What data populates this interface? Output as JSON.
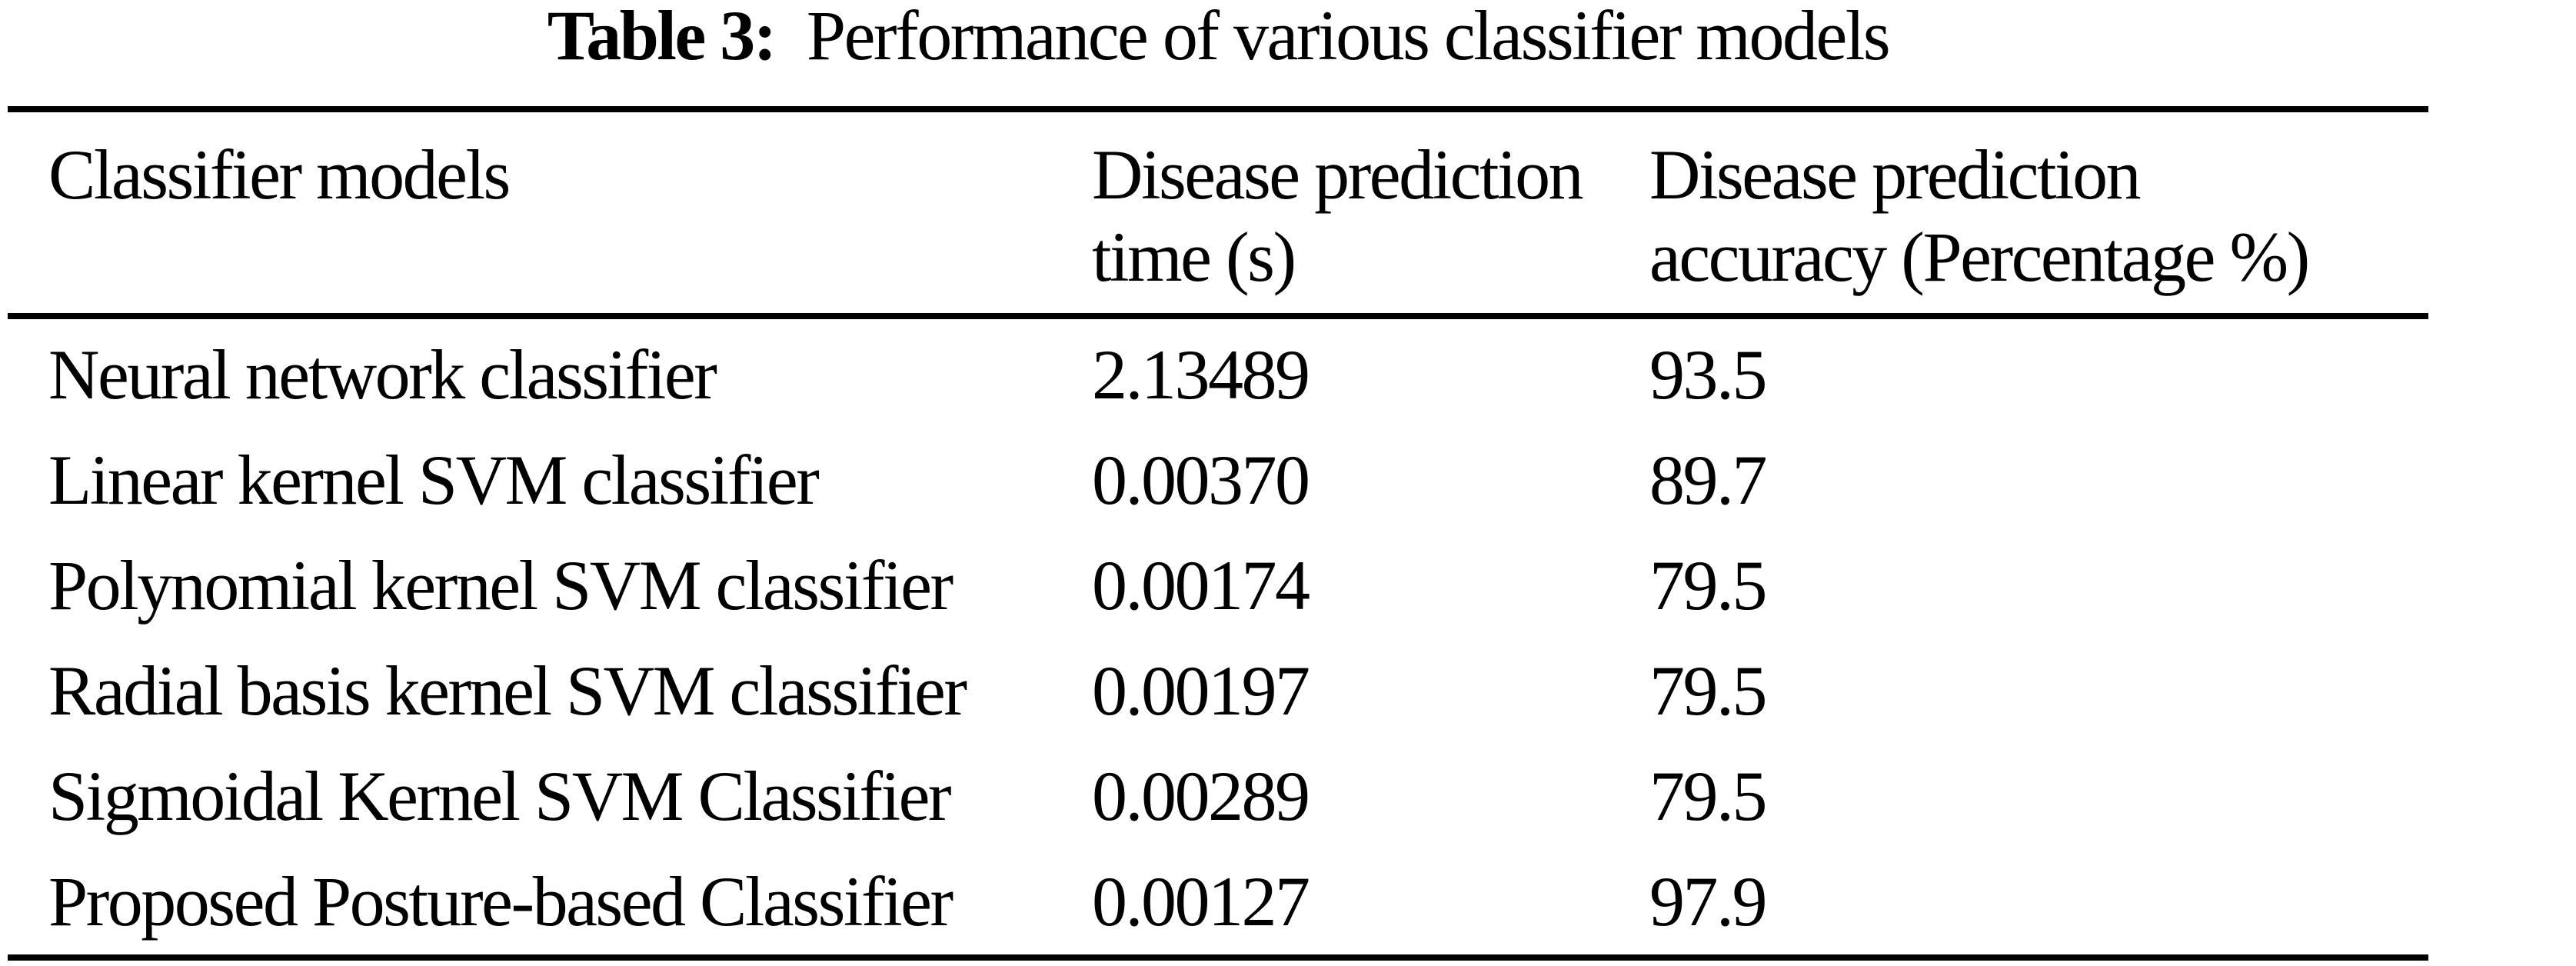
{
  "caption": {
    "label": "Table 3:",
    "text": "Performance of various classifier models"
  },
  "table": {
    "columns_full": [
      "Classifier models",
      "Disease prediction time (s)",
      "Disease prediction accuracy (Percentage %)"
    ],
    "header": {
      "col1": {
        "line1": "Classifier models",
        "line2": ""
      },
      "col2": {
        "line1": "Disease prediction",
        "line2": "time (s)"
      },
      "col3": {
        "line1": "Disease prediction",
        "line2": "accuracy (Percentage %)"
      }
    },
    "rows": [
      {
        "model": "Neural network classifier",
        "time": "2.13489",
        "accuracy": "93.5"
      },
      {
        "model": "Linear kernel SVM classifier",
        "time": "0.00370",
        "accuracy": "89.7"
      },
      {
        "model": "Polynomial kernel SVM classifier",
        "time": "0.00174",
        "accuracy": "79.5"
      },
      {
        "model": "Radial basis kernel SVM classifier",
        "time": "0.00197",
        "accuracy": "79.5"
      },
      {
        "model": "Sigmoidal Kernel SVM Classifier",
        "time": "0.00289",
        "accuracy": "79.5"
      },
      {
        "model": "Proposed Posture-based Classifier",
        "time": "0.00127",
        "accuracy": "97.9"
      }
    ],
    "text_color": "#000000",
    "background_color": "#ffffff"
  }
}
